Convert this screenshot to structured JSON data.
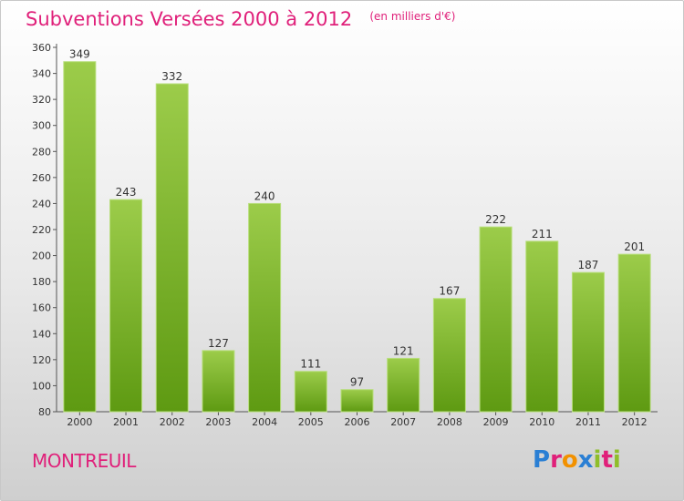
{
  "header": {
    "title": "Subventions Versées 2000 à 2012",
    "subtitle": "(en milliers d'€)"
  },
  "footer": {
    "commune": "MONTREUIL",
    "logo": {
      "text": "Proxiti",
      "colors": [
        "#2a7fd4",
        "#e0207a",
        "#f29100",
        "#2a7fd4",
        "#8fbe2a",
        "#e0207a",
        "#8fbe2a"
      ]
    }
  },
  "chart_data": {
    "type": "bar",
    "title": "Subventions Versées 2000 à 2012",
    "subtitle": "(en milliers d'€)",
    "categories": [
      "2000",
      "2001",
      "2002",
      "2003",
      "2004",
      "2005",
      "2006",
      "2007",
      "2008",
      "2009",
      "2010",
      "2011",
      "2012"
    ],
    "values": [
      349,
      243,
      332,
      127,
      240,
      111,
      97,
      121,
      167,
      222,
      211,
      187,
      201
    ],
    "ylim": [
      80,
      360
    ],
    "yticks": [
      80,
      100,
      120,
      140,
      160,
      180,
      200,
      220,
      240,
      260,
      280,
      300,
      320,
      340,
      360
    ],
    "grid": false,
    "bar_color": "#8cc63f",
    "bar_color_dark": "#5e9a12"
  }
}
